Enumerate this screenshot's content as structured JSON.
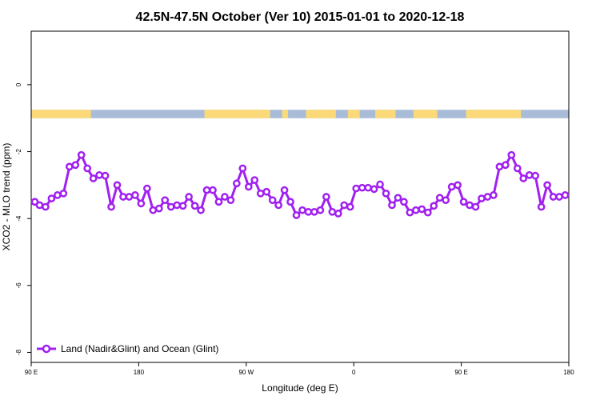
{
  "chart_data": {
    "type": "line",
    "title": "42.5N-47.5N October (Ver 10)   2015-01-01 to 2020-12-18",
    "xlabel": "Longitude (deg E)",
    "ylabel": "XCO2 - MLO trend (ppm)",
    "xlim": [
      90,
      540
    ],
    "ylim": [
      -8.3,
      1.6
    ],
    "x_ticks": [
      {
        "value": 90,
        "label": "90 E"
      },
      {
        "value": 180,
        "label": "180"
      },
      {
        "value": 270,
        "label": "90 W"
      },
      {
        "value": 360,
        "label": "0"
      },
      {
        "value": 450,
        "label": "90 E"
      },
      {
        "value": 540,
        "label": "180"
      }
    ],
    "y_ticks": [
      {
        "value": 0,
        "label": "0"
      },
      {
        "value": -2,
        "label": "-2"
      },
      {
        "value": -4,
        "label": "-4"
      },
      {
        "value": -6,
        "label": "-6"
      },
      {
        "value": -8,
        "label": "-8"
      }
    ],
    "grid": false,
    "legend_position": "bottom-left",
    "land_ocean_band": {
      "y_range": [
        -1.0,
        -0.75
      ],
      "land_color": "#fbd978",
      "ocean_color": "#a8bcd8",
      "land_segments": [
        [
          90,
          140
        ],
        [
          235,
          290
        ],
        [
          300,
          305
        ],
        [
          320,
          345
        ],
        [
          355,
          365
        ],
        [
          378,
          395
        ],
        [
          410,
          430
        ],
        [
          454,
          500
        ]
      ]
    },
    "series": [
      {
        "name": "Land (Nadir&Glint) and Ocean (Glint)",
        "color": "#a020f0",
        "x": [
          93,
          97,
          102,
          107,
          112,
          117,
          122,
          127,
          132,
          137,
          142,
          147,
          152,
          157,
          162,
          167,
          172,
          177,
          182,
          187,
          192,
          197,
          202,
          207,
          212,
          217,
          222,
          227,
          232,
          237,
          242,
          247,
          252,
          257,
          262,
          267,
          272,
          277,
          282,
          287,
          292,
          297,
          302,
          307,
          312,
          317,
          322,
          327,
          332,
          337,
          342,
          347,
          352,
          357,
          362,
          367,
          372,
          377,
          382,
          387,
          392,
          397,
          402,
          407,
          412,
          417,
          422,
          427,
          432,
          437,
          442,
          447,
          452,
          457,
          462,
          467,
          472,
          477,
          482,
          487,
          492,
          497,
          502,
          507,
          512,
          517,
          522,
          527,
          532,
          537
        ],
        "y": [
          -3.5,
          -3.6,
          -3.65,
          -3.4,
          -3.3,
          -3.25,
          -2.45,
          -2.4,
          -2.1,
          -2.5,
          -2.8,
          -2.7,
          -2.72,
          -3.65,
          -3.0,
          -3.35,
          -3.35,
          -3.3,
          -3.55,
          -3.1,
          -3.75,
          -3.7,
          -3.45,
          -3.65,
          -3.6,
          -3.62,
          -3.35,
          -3.62,
          -3.75,
          -3.15,
          -3.15,
          -3.5,
          -3.35,
          -3.45,
          -2.95,
          -2.5,
          -3.05,
          -2.85,
          -3.25,
          -3.2,
          -3.45,
          -3.6,
          -3.15,
          -3.5,
          -3.9,
          -3.75,
          -3.8,
          -3.8,
          -3.75,
          -3.35,
          -3.8,
          -3.85,
          -3.6,
          -3.65,
          -3.1,
          -3.08,
          -3.08,
          -3.12,
          -2.98,
          -3.25,
          -3.6,
          -3.38,
          -3.5,
          -3.82,
          -3.75,
          -3.72,
          -3.82,
          -3.62,
          -3.38,
          -3.45,
          -3.05,
          -3.0,
          -3.5,
          -3.6,
          -3.65,
          -3.4,
          -3.35,
          -3.3,
          -2.45,
          -2.4,
          -2.1,
          -2.5,
          -2.8,
          -2.7,
          -2.72,
          -3.65,
          -3.0,
          -3.35,
          -3.35,
          -3.3
        ]
      }
    ]
  }
}
